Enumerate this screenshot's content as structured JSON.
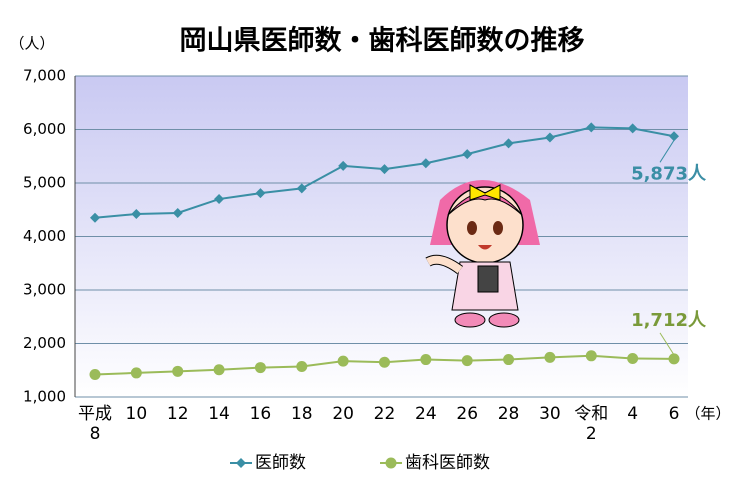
{
  "chart_data": {
    "type": "line",
    "title": "岡山県医師数・歯科医師数の推移",
    "y_label": "（人）",
    "x_label": "（年）",
    "categories": [
      "平成\n8",
      "10",
      "12",
      "14",
      "16",
      "18",
      "20",
      "22",
      "24",
      "26",
      "28",
      "30",
      "令和\n2",
      "4",
      "6"
    ],
    "series": [
      {
        "name": "医師数",
        "color": "#3a8fa5",
        "marker": "diamond",
        "values": [
          4350,
          4420,
          4440,
          4700,
          4810,
          4900,
          5320,
          5260,
          5370,
          5540,
          5740,
          5850,
          6040,
          6020,
          5873
        ],
        "value_labels": [
          null,
          null,
          null,
          null,
          null,
          null,
          null,
          null,
          null,
          null,
          null,
          null,
          null,
          null,
          "5,873人"
        ]
      },
      {
        "name": "歯科医師数",
        "color": "#9bbb59",
        "marker": "circle",
        "values": [
          1420,
          1450,
          1480,
          1510,
          1550,
          1570,
          1670,
          1650,
          1700,
          1680,
          1700,
          1740,
          1770,
          1720,
          1712
        ],
        "value_labels": [
          null,
          null,
          null,
          null,
          null,
          null,
          null,
          null,
          null,
          null,
          null,
          null,
          null,
          null,
          "1,712人"
        ]
      }
    ],
    "ylim": [
      1000,
      7000
    ],
    "yticks": [
      {
        "value": 1000,
        "label": "1,000"
      },
      {
        "value": 2000,
        "label": "2,000"
      },
      {
        "value": 3000,
        "label": "3,000"
      },
      {
        "value": 4000,
        "label": "4,000"
      },
      {
        "value": 5000,
        "label": "5,000"
      },
      {
        "value": 6000,
        "label": "6,000"
      },
      {
        "value": 7000,
        "label": "7,000"
      }
    ],
    "grid": true
  }
}
